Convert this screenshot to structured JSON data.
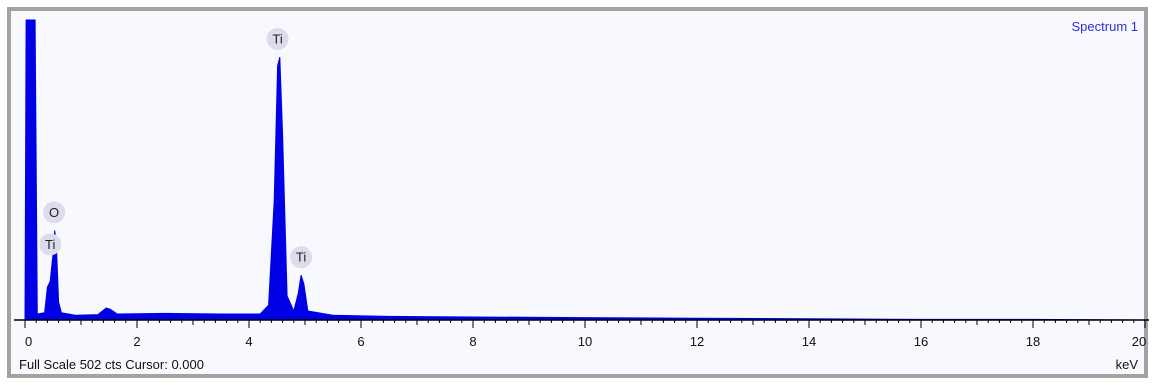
{
  "window": {
    "status_text": "Full Scale 502 cts Cursor: 0.000",
    "accent_color": "#0000e6"
  },
  "chart_data": {
    "type": "area",
    "title": "Spectrum 1",
    "xlabel": "keV",
    "ylabel": "",
    "xlim": [
      -0.2,
      20.2
    ],
    "ylim": [
      0,
      502
    ],
    "full_scale_cts": 502,
    "cursor_kev": 0.0,
    "x_ticks": [
      0,
      2,
      4,
      6,
      8,
      10,
      12,
      14,
      16,
      18,
      20
    ],
    "series": [
      {
        "color": "#0000e6",
        "points": [
          [
            0.0,
            0
          ],
          [
            0.02,
            502
          ],
          [
            0.18,
            502
          ],
          [
            0.22,
            10
          ],
          [
            0.35,
            12
          ],
          [
            0.4,
            55
          ],
          [
            0.45,
            65
          ],
          [
            0.5,
            110
          ],
          [
            0.53,
            150
          ],
          [
            0.56,
            125
          ],
          [
            0.6,
            30
          ],
          [
            0.65,
            12
          ],
          [
            0.9,
            8
          ],
          [
            1.3,
            9
          ],
          [
            1.45,
            20
          ],
          [
            1.52,
            18
          ],
          [
            1.65,
            10
          ],
          [
            2.5,
            11
          ],
          [
            3.5,
            10
          ],
          [
            4.2,
            10
          ],
          [
            4.35,
            25
          ],
          [
            4.45,
            200
          ],
          [
            4.51,
            425
          ],
          [
            4.55,
            440
          ],
          [
            4.6,
            310
          ],
          [
            4.68,
            40
          ],
          [
            4.8,
            15
          ],
          [
            4.88,
            45
          ],
          [
            4.93,
            75
          ],
          [
            4.98,
            60
          ],
          [
            5.05,
            15
          ],
          [
            5.5,
            8
          ],
          [
            6.5,
            6
          ],
          [
            8.0,
            5
          ],
          [
            10.0,
            4
          ],
          [
            12.0,
            3
          ],
          [
            14.0,
            2
          ],
          [
            16.0,
            1
          ],
          [
            18.0,
            1
          ],
          [
            20.0,
            0
          ]
        ]
      }
    ],
    "peak_labels": [
      {
        "element": "Ti",
        "x": 4.51,
        "y": 440
      },
      {
        "element": "O",
        "x": 0.52,
        "y": 150
      },
      {
        "element": "Ti",
        "x": 0.45,
        "y": 150
      },
      {
        "element": "Ti",
        "x": 4.93,
        "y": 75
      }
    ]
  }
}
